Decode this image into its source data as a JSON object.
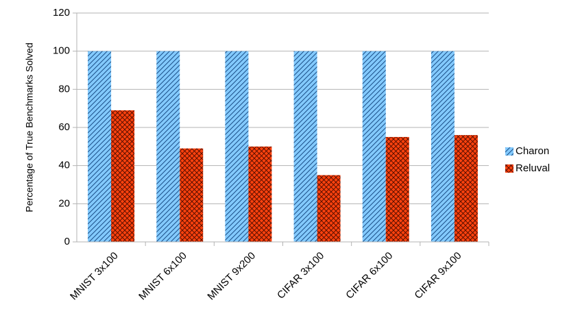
{
  "chart_data": {
    "type": "bar",
    "categories": [
      "MNIST 3x100",
      "MNIST 6x100",
      "MNIST 9x200",
      "CIFAR 3x100",
      "CIFAR 6x100",
      "CIFAR 9x100"
    ],
    "y_label": "Percentage of True Benchmarks Solved",
    "series": [
      {
        "name": "Charon",
        "color": "#83caff",
        "values": [
          100,
          100,
          100,
          100,
          100,
          100
        ]
      },
      {
        "name": "Reluval",
        "color": "#ff420e",
        "values": [
          69,
          49,
          50,
          35,
          55,
          56
        ]
      }
    ],
    "ylim": [
      0,
      120
    ],
    "yticks": [
      0,
      20,
      40,
      60,
      80,
      100,
      120
    ],
    "grid": true,
    "legend": "right"
  }
}
